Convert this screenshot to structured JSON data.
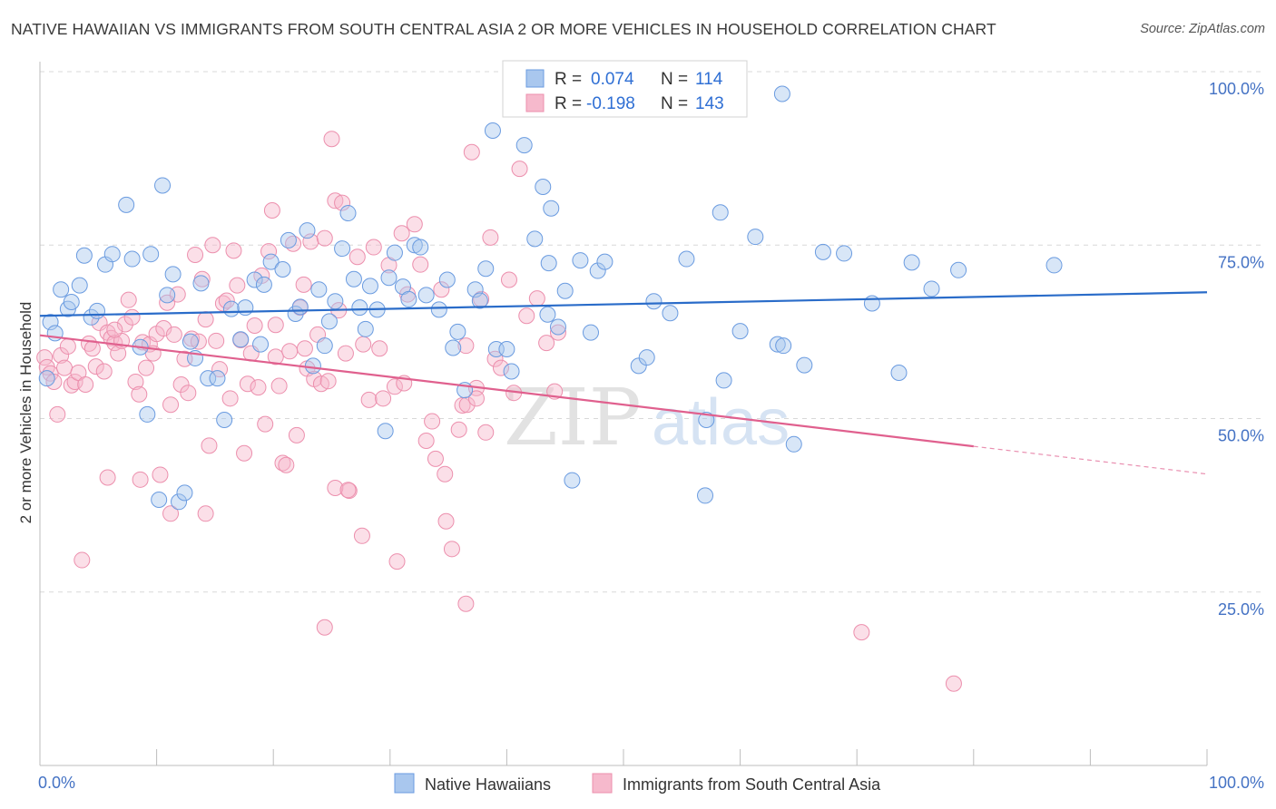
{
  "title": "NATIVE HAWAIIAN VS IMMIGRANTS FROM SOUTH CENTRAL ASIA 2 OR MORE VEHICLES IN HOUSEHOLD CORRELATION CHART",
  "source": "Source: ZipAtlas.com",
  "watermark": "ZIPatlas",
  "colors": {
    "blue_fill": "#a9c7ee",
    "blue_stroke": "#6a9be0",
    "blue_line": "#2a6cc9",
    "pink_fill": "#f6b9cc",
    "pink_stroke": "#ec8fad",
    "pink_line": "#e0608e",
    "grid": "#d8d8d8",
    "tick_text": "#4472c4"
  },
  "legend_top": {
    "rows": [
      {
        "r_label": "R =",
        "r_value": "0.074",
        "n_label": "N =",
        "n_value": "114"
      },
      {
        "r_label": "R =",
        "r_value": "-0.198",
        "n_label": "N =",
        "n_value": "143"
      }
    ]
  },
  "chart_data": {
    "type": "scatter",
    "xlabel": "",
    "ylabel": "2 or more Vehicles in Household",
    "xlim": [
      0,
      100
    ],
    "ylim": [
      0,
      100
    ],
    "x_tick_labels": [
      "0.0%",
      "100.0%"
    ],
    "y_tick_labels": [
      "25.0%",
      "50.0%",
      "75.0%",
      "100.0%"
    ],
    "y_ticks": [
      25,
      50,
      75,
      100
    ],
    "grid": true,
    "legend_position": "bottom",
    "series": [
      {
        "name": "Native Hawaiians",
        "color": "#6a9be0",
        "trend": {
          "x0": 0,
          "y0": 64.8,
          "x1": 100,
          "y1": 68.2
        },
        "points": [
          [
            0.6,
            55.8
          ],
          [
            0.9,
            63.9
          ],
          [
            1.3,
            62.3
          ],
          [
            1.8,
            68.6
          ],
          [
            2.4,
            65.8
          ],
          [
            2.7,
            66.8
          ],
          [
            3.4,
            69.2
          ],
          [
            3.8,
            73.5
          ],
          [
            4.4,
            64.6
          ],
          [
            4.9,
            65.5
          ],
          [
            5.6,
            72.2
          ],
          [
            6.2,
            73.7
          ],
          [
            7.4,
            80.8
          ],
          [
            7.9,
            73.0
          ],
          [
            8.6,
            60.3
          ],
          [
            9.2,
            50.6
          ],
          [
            9.5,
            73.7
          ],
          [
            10.2,
            38.3
          ],
          [
            10.5,
            83.6
          ],
          [
            10.9,
            67.8
          ],
          [
            11.4,
            70.8
          ],
          [
            11.9,
            38.0
          ],
          [
            12.4,
            39.3
          ],
          [
            12.9,
            61.1
          ],
          [
            13.3,
            58.7
          ],
          [
            13.8,
            69.5
          ],
          [
            14.4,
            55.8
          ],
          [
            15.2,
            55.8
          ],
          [
            15.8,
            49.8
          ],
          [
            16.4,
            65.8
          ],
          [
            17.2,
            61.4
          ],
          [
            17.6,
            66.0
          ],
          [
            18.4,
            70.0
          ],
          [
            18.9,
            60.7
          ],
          [
            19.2,
            69.3
          ],
          [
            19.8,
            72.6
          ],
          [
            20.8,
            71.5
          ],
          [
            21.3,
            75.7
          ],
          [
            21.9,
            65.1
          ],
          [
            22.3,
            66.1
          ],
          [
            22.9,
            77.1
          ],
          [
            23.4,
            57.6
          ],
          [
            23.9,
            68.6
          ],
          [
            24.4,
            60.5
          ],
          [
            24.8,
            64.0
          ],
          [
            25.3,
            66.9
          ],
          [
            25.9,
            74.5
          ],
          [
            26.4,
            79.6
          ],
          [
            26.9,
            70.1
          ],
          [
            27.4,
            66.0
          ],
          [
            27.9,
            62.9
          ],
          [
            28.3,
            69.1
          ],
          [
            28.9,
            65.7
          ],
          [
            29.6,
            48.2
          ],
          [
            29.9,
            70.3
          ],
          [
            30.4,
            73.9
          ],
          [
            31.1,
            69.0
          ],
          [
            31.6,
            67.2
          ],
          [
            32.1,
            75.0
          ],
          [
            32.6,
            74.7
          ],
          [
            33.1,
            67.8
          ],
          [
            34.2,
            65.7
          ],
          [
            34.9,
            70.0
          ],
          [
            35.4,
            60.2
          ],
          [
            35.8,
            62.5
          ],
          [
            36.4,
            54.1
          ],
          [
            37.3,
            68.6
          ],
          [
            37.7,
            67.0
          ],
          [
            38.2,
            71.6
          ],
          [
            39.1,
            60.0
          ],
          [
            40.0,
            60.0
          ],
          [
            40.4,
            56.8
          ],
          [
            41.5,
            89.4
          ],
          [
            42.4,
            75.9
          ],
          [
            43.1,
            83.4
          ],
          [
            43.5,
            65.0
          ],
          [
            43.8,
            80.3
          ],
          [
            44.4,
            63.2
          ],
          [
            45.0,
            68.4
          ],
          [
            45.6,
            41.1
          ],
          [
            46.3,
            72.8
          ],
          [
            47.2,
            62.4
          ],
          [
            47.8,
            71.3
          ],
          [
            48.4,
            72.6
          ],
          [
            51.3,
            57.6
          ],
          [
            52.0,
            58.8
          ],
          [
            52.6,
            66.9
          ],
          [
            54.0,
            65.2
          ],
          [
            55.4,
            73.0
          ],
          [
            57.1,
            49.8
          ],
          [
            58.3,
            79.7
          ],
          [
            58.6,
            55.5
          ],
          [
            60.0,
            62.6
          ],
          [
            61.3,
            76.2
          ],
          [
            63.2,
            60.7
          ],
          [
            63.7,
            60.5
          ],
          [
            64.6,
            46.3
          ],
          [
            65.5,
            57.7
          ],
          [
            67.1,
            74.0
          ],
          [
            68.9,
            73.8
          ],
          [
            71.3,
            66.6
          ],
          [
            73.6,
            56.6
          ],
          [
            74.7,
            72.5
          ],
          [
            76.4,
            68.7
          ],
          [
            78.7,
            71.4
          ],
          [
            86.9,
            72.1
          ],
          [
            38.8,
            91.5
          ],
          [
            63.6,
            96.8
          ],
          [
            57.0,
            38.9
          ],
          [
            43.6,
            72.4
          ]
        ]
      },
      {
        "name": "Immigrants from South Central Asia",
        "color": "#ec8fad",
        "trend": {
          "x0": 0,
          "y0": 62.0,
          "x1": 80,
          "y1": 46.0,
          "dash_x1": 100,
          "dash_y1": 42.0
        },
        "points": [
          [
            0.4,
            58.8
          ],
          [
            0.6,
            57.4
          ],
          [
            0.9,
            56.5
          ],
          [
            1.2,
            55.3
          ],
          [
            1.5,
            50.6
          ],
          [
            1.8,
            59.1
          ],
          [
            2.1,
            57.3
          ],
          [
            2.4,
            60.4
          ],
          [
            2.7,
            54.8
          ],
          [
            3.0,
            55.3
          ],
          [
            3.3,
            56.6
          ],
          [
            3.6,
            29.6
          ],
          [
            3.9,
            54.9
          ],
          [
            4.2,
            60.8
          ],
          [
            4.5,
            60.1
          ],
          [
            4.8,
            57.5
          ],
          [
            5.1,
            63.8
          ],
          [
            5.5,
            56.8
          ],
          [
            5.8,
            62.4
          ],
          [
            6.1,
            61.6
          ],
          [
            6.4,
            60.9
          ],
          [
            6.7,
            59.4
          ],
          [
            7.0,
            61.2
          ],
          [
            7.3,
            63.6
          ],
          [
            7.6,
            67.1
          ],
          [
            7.9,
            64.6
          ],
          [
            8.2,
            55.3
          ],
          [
            8.5,
            53.5
          ],
          [
            8.8,
            61.0
          ],
          [
            9.1,
            57.3
          ],
          [
            9.4,
            60.7
          ],
          [
            9.7,
            59.4
          ],
          [
            10.0,
            62.2
          ],
          [
            10.3,
            41.9
          ],
          [
            10.6,
            63.0
          ],
          [
            10.9,
            66.7
          ],
          [
            11.2,
            52.0
          ],
          [
            11.2,
            36.3
          ],
          [
            11.5,
            62.1
          ],
          [
            11.8,
            67.9
          ],
          [
            12.1,
            54.9
          ],
          [
            12.4,
            58.6
          ],
          [
            12.7,
            53.7
          ],
          [
            13.0,
            61.5
          ],
          [
            13.3,
            73.6
          ],
          [
            13.6,
            61.1
          ],
          [
            13.9,
            70.1
          ],
          [
            14.2,
            64.3
          ],
          [
            14.5,
            46.1
          ],
          [
            14.8,
            75.0
          ],
          [
            15.1,
            61.2
          ],
          [
            15.4,
            57.1
          ],
          [
            15.7,
            66.6
          ],
          [
            16.0,
            67.0
          ],
          [
            16.3,
            52.9
          ],
          [
            16.6,
            74.2
          ],
          [
            16.9,
            69.2
          ],
          [
            17.2,
            61.3
          ],
          [
            17.5,
            45.0
          ],
          [
            17.8,
            55.0
          ],
          [
            18.1,
            59.4
          ],
          [
            18.4,
            63.4
          ],
          [
            18.7,
            54.5
          ],
          [
            19.0,
            70.6
          ],
          [
            19.3,
            49.2
          ],
          [
            19.6,
            74.1
          ],
          [
            19.9,
            80.0
          ],
          [
            20.2,
            58.9
          ],
          [
            20.5,
            54.7
          ],
          [
            20.8,
            43.6
          ],
          [
            21.1,
            43.3
          ],
          [
            21.4,
            59.7
          ],
          [
            21.7,
            75.2
          ],
          [
            22.0,
            47.6
          ],
          [
            22.3,
            66.0
          ],
          [
            22.6,
            69.3
          ],
          [
            22.9,
            57.2
          ],
          [
            23.2,
            75.5
          ],
          [
            23.5,
            55.7
          ],
          [
            23.8,
            62.1
          ],
          [
            24.1,
            55.0
          ],
          [
            24.4,
            76.0
          ],
          [
            24.7,
            55.4
          ],
          [
            25.0,
            90.3
          ],
          [
            25.3,
            81.4
          ],
          [
            25.6,
            65.6
          ],
          [
            25.9,
            81.1
          ],
          [
            26.2,
            59.4
          ],
          [
            26.5,
            39.6
          ],
          [
            27.2,
            73.3
          ],
          [
            27.6,
            33.1
          ],
          [
            28.2,
            52.7
          ],
          [
            28.6,
            74.7
          ],
          [
            29.1,
            60.1
          ],
          [
            29.4,
            52.9
          ],
          [
            29.9,
            72.1
          ],
          [
            30.4,
            54.6
          ],
          [
            31.0,
            76.7
          ],
          [
            31.5,
            67.9
          ],
          [
            32.1,
            78.0
          ],
          [
            32.6,
            72.2
          ],
          [
            33.1,
            46.8
          ],
          [
            33.6,
            49.6
          ],
          [
            33.9,
            44.2
          ],
          [
            34.4,
            68.6
          ],
          [
            34.8,
            35.2
          ],
          [
            35.3,
            31.2
          ],
          [
            35.9,
            48.4
          ],
          [
            36.2,
            51.9
          ],
          [
            36.5,
            60.5
          ],
          [
            37.0,
            88.4
          ],
          [
            37.4,
            54.4
          ],
          [
            37.8,
            67.2
          ],
          [
            38.2,
            48.0
          ],
          [
            38.6,
            76.1
          ],
          [
            39.0,
            58.6
          ],
          [
            39.5,
            57.3
          ],
          [
            40.2,
            70.0
          ],
          [
            40.6,
            53.7
          ],
          [
            41.1,
            86.0
          ],
          [
            41.7,
            64.8
          ],
          [
            42.6,
            67.3
          ],
          [
            43.4,
            60.9
          ],
          [
            44.1,
            53.9
          ],
          [
            44.4,
            62.4
          ],
          [
            24.4,
            19.9
          ],
          [
            25.3,
            40.0
          ],
          [
            26.4,
            39.7
          ],
          [
            30.6,
            29.4
          ],
          [
            34.7,
            42.0
          ],
          [
            36.5,
            23.3
          ],
          [
            36.6,
            52.0
          ],
          [
            37.4,
            52.9
          ],
          [
            70.4,
            19.2
          ],
          [
            78.3,
            11.8
          ],
          [
            8.6,
            41.2
          ],
          [
            6.4,
            62.8
          ],
          [
            5.8,
            41.5
          ],
          [
            14.2,
            36.3
          ],
          [
            20.2,
            63.5
          ],
          [
            22.7,
            60.1
          ],
          [
            27.7,
            60.7
          ],
          [
            31.2,
            55.1
          ]
        ]
      }
    ]
  },
  "legend_bottom": {
    "items": [
      "Native Hawaiians",
      "Immigrants from South Central Asia"
    ]
  }
}
